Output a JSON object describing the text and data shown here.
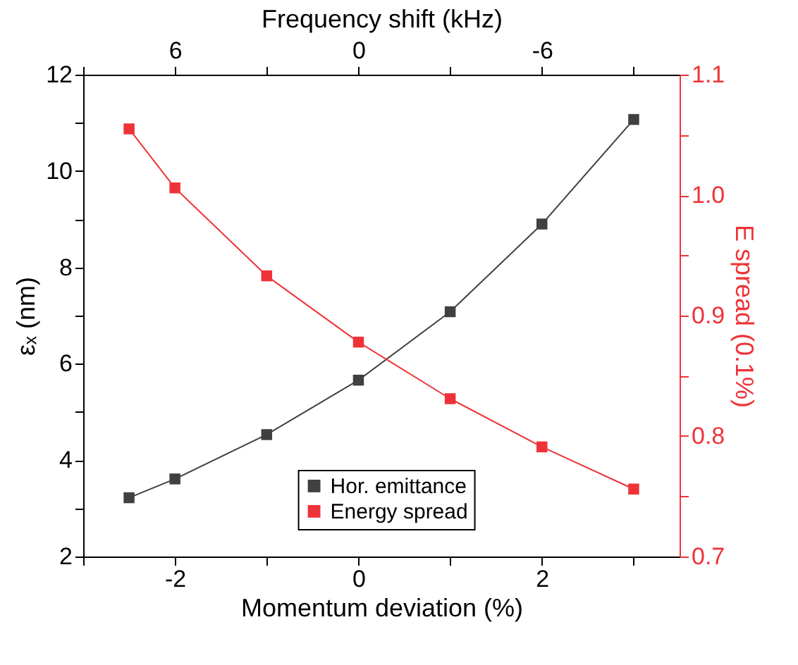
{
  "chart_data": {
    "type": "line",
    "xlabel": "Momentum deviation (%)",
    "ylabel": "εₓ (nm)",
    "y2label": "E spread (0.1%)",
    "x2label": "Frequency shift (kHz)",
    "x": [
      -2.5,
      -2,
      -1,
      0,
      1,
      2,
      3
    ],
    "series": [
      {
        "name": "Hor. emittance",
        "color": "#404040",
        "values": [
          3.22,
          3.61,
          4.53,
          5.66,
          7.08,
          8.9,
          11.07
        ]
      },
      {
        "name": "Energy spread",
        "color": "#ee3338",
        "axis": "y2",
        "values": [
          1.055,
          1.006,
          0.933,
          0.878,
          0.831,
          0.791,
          0.756
        ]
      }
    ],
    "xlim": [
      -3,
      3.5
    ],
    "xticks": [
      {
        "value": -3,
        "label": null
      },
      -2,
      {
        "value": -1,
        "label": null
      },
      0,
      {
        "value": 1,
        "label": null
      },
      2,
      {
        "value": 3,
        "label": null
      }
    ],
    "x2lim": [
      9,
      -10.5
    ],
    "x2ticks": [
      {
        "value": 9,
        "label": null
      },
      6,
      {
        "value": 3,
        "label": null
      },
      0,
      {
        "value": -3,
        "label": null
      },
      -6,
      {
        "value": -9,
        "label": null
      }
    ],
    "ylim": [
      2,
      12
    ],
    "yticks": [
      2,
      {
        "value": 3,
        "label": null
      },
      4,
      {
        "value": 5,
        "label": null
      },
      6,
      {
        "value": 7,
        "label": null
      },
      8,
      {
        "value": 9,
        "label": null
      },
      10,
      {
        "value": 11,
        "label": null
      },
      12
    ],
    "y2lim": [
      0.7,
      1.1
    ],
    "y2ticks": [
      0.7,
      {
        "value": 0.75,
        "label": null
      },
      0.8,
      {
        "value": 0.85,
        "label": null
      },
      0.9,
      {
        "value": 0.95,
        "label": null
      },
      {
        "value": 1.0,
        "label": "1.0"
      },
      {
        "value": 1.05,
        "label": null
      },
      1.1
    ],
    "marker": "square",
    "line_style": "solid",
    "grid": false,
    "legend": "bottom"
  }
}
